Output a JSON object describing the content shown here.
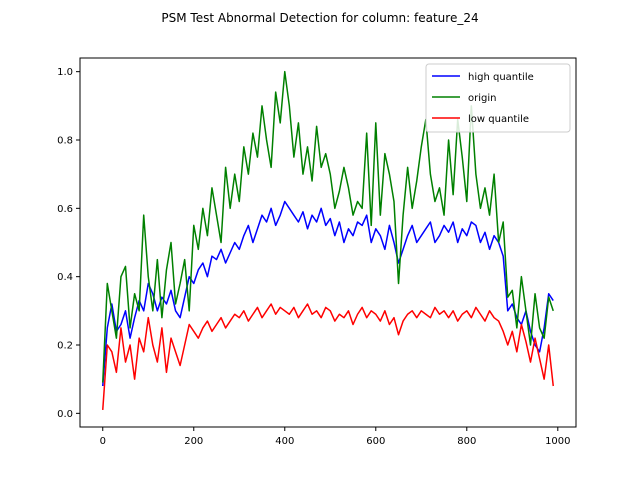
{
  "chart_data": {
    "type": "line",
    "title": "PSM Test Abnormal Detection for column: feature_24",
    "xlabel": "",
    "ylabel": "",
    "xlim": [
      -50,
      1040
    ],
    "ylim": [
      -0.04,
      1.04
    ],
    "xticks": [
      0,
      200,
      400,
      600,
      800,
      1000
    ],
    "yticks": [
      0.0,
      0.2,
      0.4,
      0.6,
      0.8,
      1.0
    ],
    "xtick_labels": [
      "0",
      "200",
      "400",
      "600",
      "800",
      "1000"
    ],
    "ytick_labels": [
      "0.0",
      "0.2",
      "0.4",
      "0.6",
      "0.8",
      "1.0"
    ],
    "grid": false,
    "legend_position": "top-right",
    "series": [
      {
        "name": "high quantile",
        "color": "#0000ff",
        "x": [
          0,
          10,
          20,
          30,
          40,
          50,
          60,
          70,
          80,
          90,
          100,
          110,
          120,
          130,
          140,
          150,
          160,
          170,
          180,
          190,
          200,
          210,
          220,
          230,
          240,
          250,
          260,
          270,
          280,
          290,
          300,
          310,
          320,
          330,
          340,
          350,
          360,
          370,
          380,
          390,
          400,
          410,
          420,
          430,
          440,
          450,
          460,
          470,
          480,
          490,
          500,
          510,
          520,
          530,
          540,
          550,
          560,
          570,
          580,
          590,
          600,
          610,
          620,
          630,
          640,
          650,
          660,
          670,
          680,
          690,
          700,
          710,
          720,
          730,
          740,
          750,
          760,
          770,
          780,
          790,
          800,
          810,
          820,
          830,
          840,
          850,
          860,
          870,
          880,
          890,
          900,
          910,
          920,
          930,
          940,
          950,
          960,
          970,
          980,
          990
        ],
        "y": [
          0.08,
          0.25,
          0.32,
          0.24,
          0.26,
          0.3,
          0.22,
          0.28,
          0.33,
          0.3,
          0.38,
          0.35,
          0.3,
          0.34,
          0.32,
          0.36,
          0.3,
          0.28,
          0.34,
          0.4,
          0.38,
          0.42,
          0.44,
          0.4,
          0.46,
          0.45,
          0.48,
          0.44,
          0.47,
          0.5,
          0.48,
          0.52,
          0.55,
          0.5,
          0.54,
          0.58,
          0.56,
          0.6,
          0.55,
          0.58,
          0.62,
          0.6,
          0.58,
          0.56,
          0.59,
          0.54,
          0.58,
          0.56,
          0.6,
          0.55,
          0.57,
          0.52,
          0.56,
          0.5,
          0.54,
          0.52,
          0.56,
          0.55,
          0.58,
          0.5,
          0.54,
          0.52,
          0.48,
          0.55,
          0.5,
          0.44,
          0.48,
          0.52,
          0.55,
          0.5,
          0.52,
          0.54,
          0.56,
          0.5,
          0.52,
          0.55,
          0.53,
          0.56,
          0.5,
          0.54,
          0.52,
          0.56,
          0.55,
          0.5,
          0.53,
          0.48,
          0.52,
          0.5,
          0.46,
          0.3,
          0.32,
          0.28,
          0.26,
          0.3,
          0.24,
          0.2,
          0.18,
          0.25,
          0.35,
          0.33
        ]
      },
      {
        "name": "origin",
        "color": "#008000",
        "x": [
          0,
          10,
          20,
          30,
          40,
          50,
          60,
          70,
          80,
          90,
          100,
          110,
          120,
          130,
          140,
          150,
          160,
          170,
          180,
          190,
          200,
          210,
          220,
          230,
          240,
          250,
          260,
          270,
          280,
          290,
          300,
          310,
          320,
          330,
          340,
          350,
          360,
          370,
          380,
          390,
          400,
          410,
          420,
          430,
          440,
          450,
          460,
          470,
          480,
          490,
          500,
          510,
          520,
          530,
          540,
          550,
          560,
          570,
          580,
          590,
          600,
          610,
          620,
          630,
          640,
          650,
          660,
          670,
          680,
          690,
          700,
          710,
          720,
          730,
          740,
          750,
          760,
          770,
          780,
          790,
          800,
          810,
          820,
          830,
          840,
          850,
          860,
          870,
          880,
          890,
          900,
          910,
          920,
          930,
          940,
          950,
          960,
          970,
          980,
          990
        ],
        "y": [
          0.09,
          0.38,
          0.3,
          0.22,
          0.4,
          0.43,
          0.25,
          0.35,
          0.3,
          0.58,
          0.4,
          0.3,
          0.45,
          0.28,
          0.42,
          0.5,
          0.32,
          0.38,
          0.45,
          0.3,
          0.55,
          0.48,
          0.6,
          0.52,
          0.66,
          0.58,
          0.5,
          0.72,
          0.6,
          0.7,
          0.62,
          0.78,
          0.7,
          0.82,
          0.75,
          0.9,
          0.8,
          0.72,
          0.94,
          0.85,
          1.0,
          0.9,
          0.75,
          0.85,
          0.7,
          0.78,
          0.68,
          0.84,
          0.72,
          0.76,
          0.7,
          0.6,
          0.65,
          0.72,
          0.66,
          0.58,
          0.62,
          0.6,
          0.82,
          0.55,
          0.85,
          0.58,
          0.76,
          0.7,
          0.62,
          0.38,
          0.58,
          0.72,
          0.6,
          0.68,
          0.78,
          0.86,
          0.7,
          0.62,
          0.66,
          0.58,
          0.8,
          0.64,
          0.86,
          0.75,
          0.62,
          0.9,
          0.7,
          0.6,
          0.66,
          0.58,
          0.7,
          0.5,
          0.56,
          0.34,
          0.36,
          0.25,
          0.4,
          0.3,
          0.2,
          0.35,
          0.25,
          0.22,
          0.34,
          0.3
        ]
      },
      {
        "name": "low quantile",
        "color": "#ff0000",
        "x": [
          0,
          10,
          20,
          30,
          40,
          50,
          60,
          70,
          80,
          90,
          100,
          110,
          120,
          130,
          140,
          150,
          160,
          170,
          180,
          190,
          200,
          210,
          220,
          230,
          240,
          250,
          260,
          270,
          280,
          290,
          300,
          310,
          320,
          330,
          340,
          350,
          360,
          370,
          380,
          390,
          400,
          410,
          420,
          430,
          440,
          450,
          460,
          470,
          480,
          490,
          500,
          510,
          520,
          530,
          540,
          550,
          560,
          570,
          580,
          590,
          600,
          610,
          620,
          630,
          640,
          650,
          660,
          670,
          680,
          690,
          700,
          710,
          720,
          730,
          740,
          750,
          760,
          770,
          780,
          790,
          800,
          810,
          820,
          830,
          840,
          850,
          860,
          870,
          880,
          890,
          900,
          910,
          920,
          930,
          940,
          950,
          960,
          970,
          980,
          990
        ],
        "y": [
          0.01,
          0.2,
          0.18,
          0.12,
          0.25,
          0.15,
          0.2,
          0.1,
          0.22,
          0.18,
          0.28,
          0.2,
          0.15,
          0.25,
          0.12,
          0.22,
          0.18,
          0.14,
          0.2,
          0.26,
          0.24,
          0.22,
          0.25,
          0.27,
          0.24,
          0.26,
          0.28,
          0.25,
          0.27,
          0.29,
          0.28,
          0.3,
          0.27,
          0.29,
          0.31,
          0.28,
          0.3,
          0.32,
          0.29,
          0.31,
          0.3,
          0.29,
          0.31,
          0.28,
          0.3,
          0.32,
          0.29,
          0.3,
          0.28,
          0.31,
          0.3,
          0.27,
          0.29,
          0.28,
          0.3,
          0.26,
          0.29,
          0.31,
          0.28,
          0.3,
          0.29,
          0.27,
          0.3,
          0.26,
          0.28,
          0.23,
          0.27,
          0.29,
          0.3,
          0.28,
          0.3,
          0.29,
          0.28,
          0.31,
          0.29,
          0.3,
          0.28,
          0.3,
          0.27,
          0.29,
          0.3,
          0.28,
          0.31,
          0.29,
          0.27,
          0.3,
          0.28,
          0.27,
          0.24,
          0.2,
          0.24,
          0.18,
          0.26,
          0.21,
          0.15,
          0.22,
          0.16,
          0.1,
          0.2,
          0.08
        ]
      }
    ]
  }
}
